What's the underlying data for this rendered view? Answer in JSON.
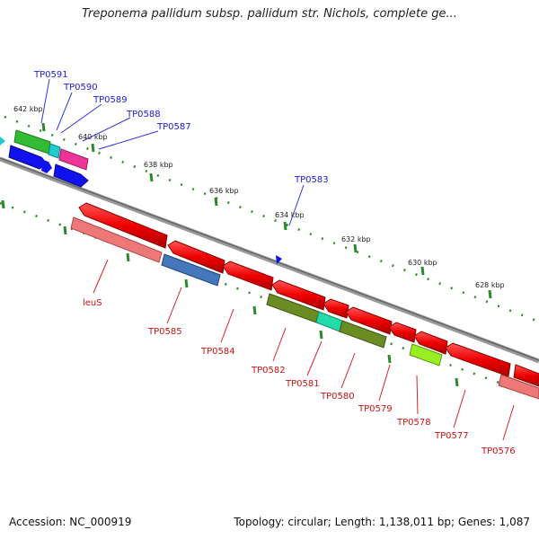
{
  "title": "Treponema pallidum subsp. pallidum str. Nichols, complete ge...",
  "footer": {
    "accession": "Accession: NC_000919",
    "summary": "Topology: circular; Length: 1,138,011 bp; Genes: 1,087"
  },
  "ticks": [
    "642 kbp",
    "640 kbp",
    "638 kbp",
    "636 kbp",
    "634 kbp",
    "632 kbp",
    "630 kbp",
    "628 kbp"
  ],
  "genes_top": [
    "TP0591",
    "TP0590",
    "TP0589",
    "TP0588",
    "TP0587",
    "TP0583"
  ],
  "genes_bottom": [
    "leuS",
    "TP0585",
    "TP0584",
    "TP0582",
    "TP0581",
    "TP0580",
    "TP0579",
    "TP0578",
    "TP0577",
    "TP0576"
  ],
  "colors": {
    "backbone": "#888888",
    "tick": "#2a8a2a",
    "label_blue": "#1a1ad8",
    "label_red": "#cc1111",
    "red": "#ee1111",
    "pink": "#ee7777",
    "steelblue": "#4477bb",
    "olive": "#6b8c23",
    "aquamarine": "#22ddaa",
    "chartreuse": "#99ee22",
    "green": "#33bb33",
    "cyan": "#22cccc",
    "magenta": "#ee3399",
    "blue": "#1111ee"
  }
}
